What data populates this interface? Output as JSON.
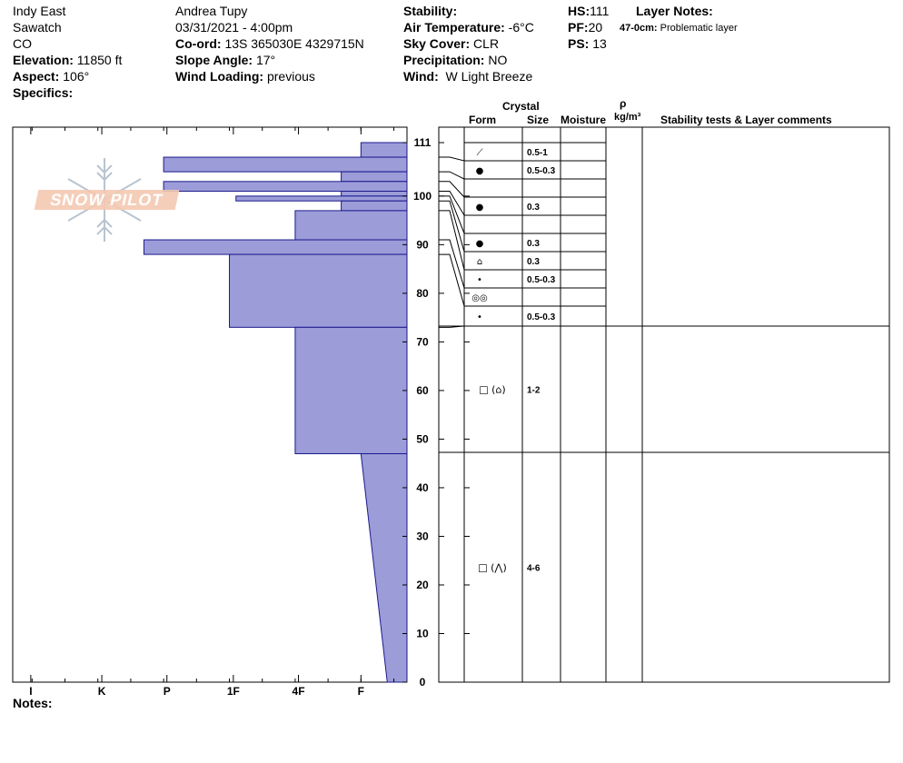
{
  "header": {
    "location": "Indy East",
    "range": "Sawatch",
    "state": "CO",
    "elevation_label": "Elevation:",
    "elevation_value": "11850 ft",
    "aspect_label": "Aspect:",
    "aspect_value": "106°",
    "specifics_label": "Specifics:",
    "observer": "Andrea Tupy",
    "datetime": "03/31/2021 - 4:00pm",
    "coord_label": "Co-ord:",
    "coord_value": "13S 365030E 4329715N",
    "slope_label": "Slope Angle:",
    "slope_value": "17°",
    "wind_loading_label": "Wind Loading:",
    "wind_loading_value": "previous",
    "stability_label": "Stability:",
    "stability_value": "",
    "air_temp_label": "Air Temperature:",
    "air_temp_value": "-6°C",
    "sky_label": "Sky Cover:",
    "sky_value": "CLR",
    "precip_label": "Precipitation:",
    "precip_value": "NO",
    "wind_label": "Wind:",
    "wind_value": "W Light Breeze",
    "hs_label": "HS:",
    "hs_value": "111",
    "pf_label": "PF:",
    "pf_value": "20",
    "ps_label": "PS:",
    "ps_value": "13",
    "layer_notes_label": "Layer Notes:",
    "layer_note_range": "47-0cm:",
    "layer_note_text": "Problematic layer"
  },
  "logo": {
    "text": "SNOW PILOT"
  },
  "columns": {
    "crystal": "Crystal",
    "form": "Form",
    "size": "Size",
    "moisture": "Moisture",
    "rho": "ρ",
    "density_unit": "kg/m³",
    "stability": "Stability tests & Layer comments"
  },
  "notes_label": "Notes:",
  "colors": {
    "profile_fill": "#9c9cd9",
    "profile_stroke": "#1a1a8c"
  },
  "chart_data": {
    "type": "hardness_profile",
    "x_ticks": [
      "I",
      "K",
      "P",
      "1F",
      "4F",
      "F"
    ],
    "y_ticks": [
      0,
      10,
      20,
      30,
      40,
      50,
      60,
      70,
      80,
      90,
      100,
      111
    ],
    "y_range": [
      0,
      111
    ],
    "x_scale": {
      "F": 0,
      "4F": 1,
      "1F": 2,
      "P": 3,
      "K": 4,
      "I": 5
    },
    "layers": [
      {
        "top": 111,
        "bottom": 108,
        "hardness": 0.7
      },
      {
        "top": 108,
        "bottom": 105,
        "hardness": 3.7
      },
      {
        "top": 105,
        "bottom": 103,
        "hardness": 1.0
      },
      {
        "top": 103,
        "bottom": 101,
        "hardness": 3.7
      },
      {
        "top": 101,
        "bottom": 100,
        "hardness": 1.0
      },
      {
        "top": 100,
        "bottom": 99,
        "hardness": 2.6
      },
      {
        "top": 99,
        "bottom": 97,
        "hardness": 1.0
      },
      {
        "top": 97,
        "bottom": 91,
        "hardness": 1.7
      },
      {
        "top": 91,
        "bottom": 88,
        "hardness": 4.0
      },
      {
        "top": 88,
        "bottom": 73,
        "hardness": 2.7
      },
      {
        "top": 73,
        "bottom": 47,
        "hardness": 1.7
      },
      {
        "top": 47,
        "bottom": 0,
        "hardness_top": 0.7,
        "hardness_bottom": 0.3
      }
    ],
    "grain_rows": [
      {
        "form": "⟋",
        "size": "0.5-1"
      },
      {
        "form": "●",
        "size": "0.5-0.3"
      },
      {
        "form": "",
        "size": ""
      },
      {
        "form": "●",
        "size": "0.3"
      },
      {
        "form": "",
        "size": ""
      },
      {
        "form": "●",
        "size": "0.3"
      },
      {
        "form": "⌂",
        "size": "0.3"
      },
      {
        "form": "•",
        "size": "0.5-0.3"
      },
      {
        "form": "◎◎",
        "size": ""
      },
      {
        "form": "•",
        "size": "0.5-0.3"
      },
      {
        "form": "□ (⌂)",
        "size": "1-2"
      },
      {
        "form": "□ (⋀)",
        "size": "4-6"
      }
    ]
  }
}
